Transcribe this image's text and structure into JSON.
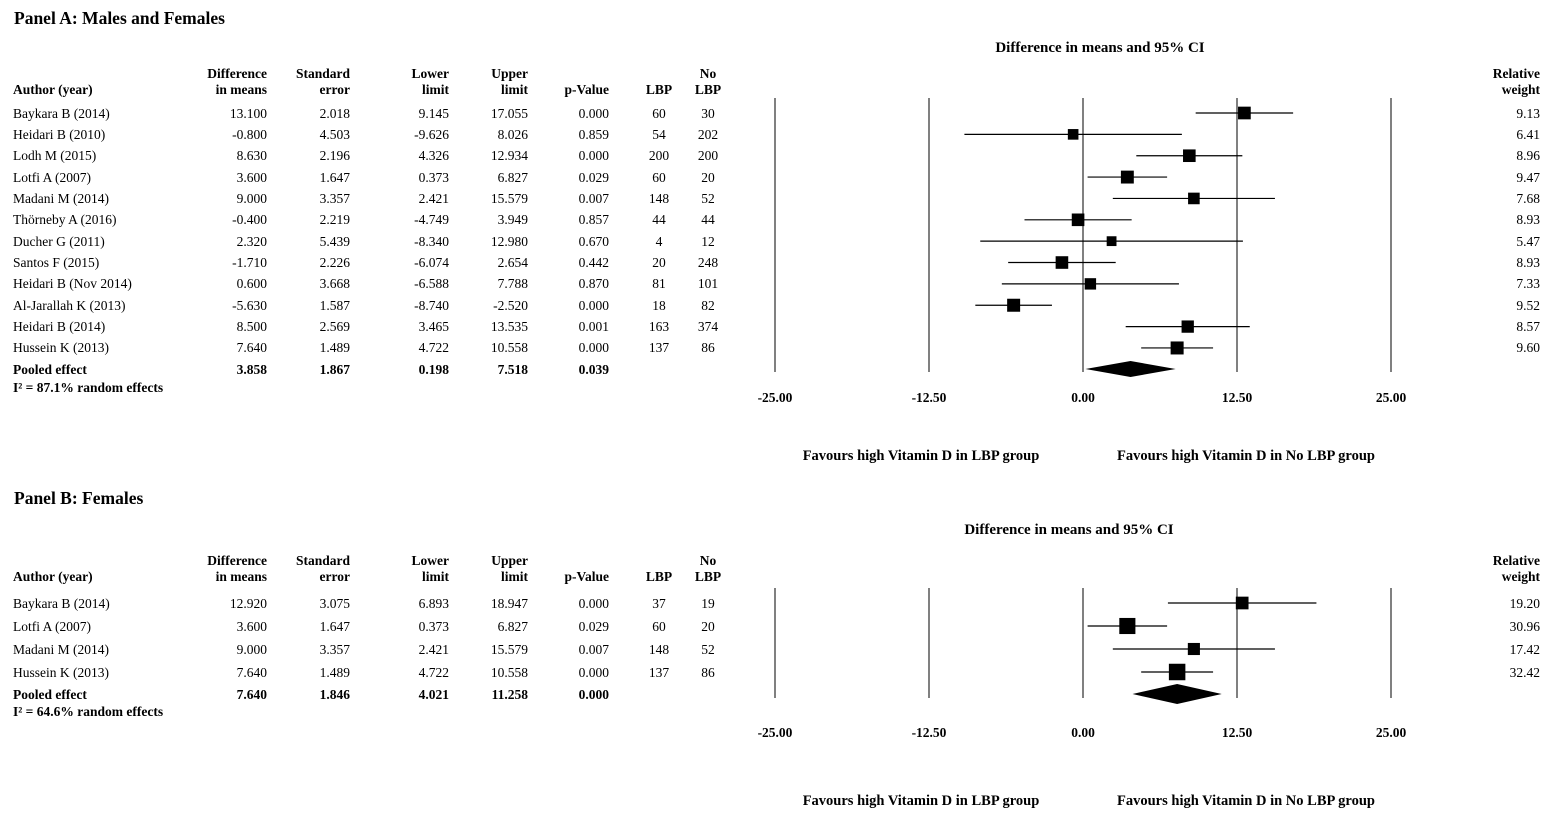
{
  "chart_data": {
    "type": "scatter",
    "subtype": "forest-plot-meta-analysis",
    "colors": {
      "foreground": "#000000",
      "background": "#ffffff"
    },
    "panels": [
      {
        "label": "Panel A: Males and Females",
        "plot_title": "Difference in means and 95% CI",
        "table_headers": {
          "author": "Author (year)",
          "diff_means": "Difference\nin means",
          "std_err": "Standard\nerror",
          "lower": "Lower\nlimit",
          "upper": "Upper\nlimit",
          "p": "p-Value",
          "lbp": "LBP",
          "no_lbp": "No\nLBP",
          "weight": "Relative\nweight"
        },
        "studies": [
          {
            "author": "Baykara B (2014)",
            "diff_means": 13.1,
            "std_err": 2.018,
            "lower": 9.145,
            "upper": 17.055,
            "p": 0.0,
            "lbp": 60,
            "no_lbp": 30,
            "weight": 9.13
          },
          {
            "author": "Heidari B (2010)",
            "diff_means": -0.8,
            "std_err": 4.503,
            "lower": -9.626,
            "upper": 8.026,
            "p": 0.859,
            "lbp": 54,
            "no_lbp": 202,
            "weight": 6.41
          },
          {
            "author": "Lodh M (2015)",
            "diff_means": 8.63,
            "std_err": 2.196,
            "lower": 4.326,
            "upper": 12.934,
            "p": 0.0,
            "lbp": 200,
            "no_lbp": 200,
            "weight": 8.96
          },
          {
            "author": "Lotfi A (2007)",
            "diff_means": 3.6,
            "std_err": 1.647,
            "lower": 0.373,
            "upper": 6.827,
            "p": 0.029,
            "lbp": 60,
            "no_lbp": 20,
            "weight": 9.47
          },
          {
            "author": "Madani M (2014)",
            "diff_means": 9.0,
            "std_err": 3.357,
            "lower": 2.421,
            "upper": 15.579,
            "p": 0.007,
            "lbp": 148,
            "no_lbp": 52,
            "weight": 7.68
          },
          {
            "author": "Thörneby A (2016)",
            "diff_means": -0.4,
            "std_err": 2.219,
            "lower": -4.749,
            "upper": 3.949,
            "p": 0.857,
            "lbp": 44,
            "no_lbp": 44,
            "weight": 8.93
          },
          {
            "author": "Ducher G (2011)",
            "diff_means": 2.32,
            "std_err": 5.439,
            "lower": -8.34,
            "upper": 12.98,
            "p": 0.67,
            "lbp": 4,
            "no_lbp": 12,
            "weight": 5.47
          },
          {
            "author": "Santos F (2015)",
            "diff_means": -1.71,
            "std_err": 2.226,
            "lower": -6.074,
            "upper": 2.654,
            "p": 0.442,
            "lbp": 20,
            "no_lbp": 248,
            "weight": 8.93
          },
          {
            "author": "Heidari B (Nov 2014)",
            "diff_means": 0.6,
            "std_err": 3.668,
            "lower": -6.588,
            "upper": 7.788,
            "p": 0.87,
            "lbp": 81,
            "no_lbp": 101,
            "weight": 7.33
          },
          {
            "author": "Al-Jarallah K (2013)",
            "diff_means": -5.63,
            "std_err": 1.587,
            "lower": -8.74,
            "upper": -2.52,
            "p": 0.0,
            "lbp": 18,
            "no_lbp": 82,
            "weight": 9.52
          },
          {
            "author": "Heidari B (2014)",
            "diff_means": 8.5,
            "std_err": 2.569,
            "lower": 3.465,
            "upper": 13.535,
            "p": 0.001,
            "lbp": 163,
            "no_lbp": 374,
            "weight": 8.57
          },
          {
            "author": "Hussein K (2013)",
            "diff_means": 7.64,
            "std_err": 1.489,
            "lower": 4.722,
            "upper": 10.558,
            "p": 0.0,
            "lbp": 137,
            "no_lbp": 86,
            "weight": 9.6
          }
        ],
        "pooled": {
          "label": "Pooled effect",
          "diff_means": 3.858,
          "std_err": 1.867,
          "lower": 0.198,
          "upper": 7.518,
          "p": 0.039
        },
        "heterogeneity": "I² = 87.1% random effects",
        "axis": {
          "min": -25,
          "max": 25,
          "tick_values": [
            -25,
            -12.5,
            0,
            12.5,
            25
          ],
          "tick_labels": [
            "-25.00",
            "-12.50",
            "0.00",
            "12.50",
            "25.00"
          ]
        },
        "favours_left": "Favours high Vitamin D in LBP group",
        "favours_right": "Favours high Vitamin D in No LBP group"
      },
      {
        "label": "Panel B: Females",
        "plot_title": "Difference in means and 95% CI",
        "table_headers": {
          "author": "Author (year)",
          "diff_means": "Difference\nin means",
          "std_err": "Standard\nerror",
          "lower": "Lower\nlimit",
          "upper": "Upper\nlimit",
          "p": "p-Value",
          "lbp": "LBP",
          "no_lbp": "No\nLBP",
          "weight": "Relative\nweight"
        },
        "studies": [
          {
            "author": "Baykara B (2014)",
            "diff_means": 12.92,
            "std_err": 3.075,
            "lower": 6.893,
            "upper": 18.947,
            "p": 0.0,
            "lbp": 37,
            "no_lbp": 19,
            "weight": 19.2
          },
          {
            "author": "Lotfi A (2007)",
            "diff_means": 3.6,
            "std_err": 1.647,
            "lower": 0.373,
            "upper": 6.827,
            "p": 0.029,
            "lbp": 60,
            "no_lbp": 20,
            "weight": 30.96
          },
          {
            "author": "Madani M (2014)",
            "diff_means": 9.0,
            "std_err": 3.357,
            "lower": 2.421,
            "upper": 15.579,
            "p": 0.007,
            "lbp": 148,
            "no_lbp": 52,
            "weight": 17.42
          },
          {
            "author": "Hussein K (2013)",
            "diff_means": 7.64,
            "std_err": 1.489,
            "lower": 4.722,
            "upper": 10.558,
            "p": 0.0,
            "lbp": 137,
            "no_lbp": 86,
            "weight": 32.42
          }
        ],
        "pooled": {
          "label": "Pooled effect",
          "diff_means": 7.64,
          "std_err": 1.846,
          "lower": 4.021,
          "upper": 11.258,
          "p": 0.0
        },
        "heterogeneity": "I² = 64.6% random effects",
        "axis": {
          "min": -25,
          "max": 25,
          "tick_values": [
            -25,
            -12.5,
            0,
            12.5,
            25
          ],
          "tick_labels": [
            "-25.00",
            "-12.50",
            "0.00",
            "12.50",
            "25.00"
          ]
        },
        "favours_left": "Favours high Vitamin D in LBP group",
        "favours_right": "Favours high Vitamin D in No LBP group"
      }
    ]
  }
}
